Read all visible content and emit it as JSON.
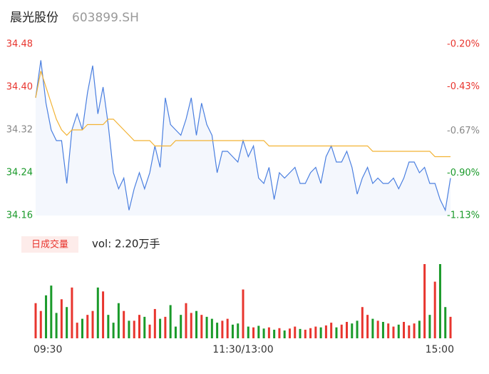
{
  "header": {
    "name": "晨光股份",
    "code": "603899.SH"
  },
  "chart_data": [
    {
      "type": "line",
      "x": [
        0,
        3,
        6,
        9,
        12,
        15,
        18,
        21,
        24,
        27,
        30,
        33,
        36,
        39,
        42,
        45,
        48,
        51,
        54,
        57,
        60,
        63,
        66,
        69,
        72,
        75,
        78,
        81,
        84,
        87,
        90,
        93,
        96,
        99,
        102,
        105,
        108,
        111,
        114,
        117,
        120,
        123,
        126,
        129,
        132,
        135,
        138,
        141,
        144,
        147,
        150,
        153,
        156,
        159,
        162,
        165,
        168,
        171,
        174,
        177,
        180,
        183,
        186,
        189,
        192,
        195,
        198,
        201,
        204,
        207,
        210,
        213,
        216,
        219,
        222,
        225,
        228,
        231,
        234,
        237,
        240
      ],
      "series": [
        {
          "color": "#4a7fe0",
          "fill": "#f4f7fd",
          "values": [
            34.38,
            34.45,
            34.37,
            34.32,
            34.3,
            34.3,
            34.22,
            34.32,
            34.35,
            34.32,
            34.39,
            34.44,
            34.35,
            34.4,
            34.33,
            34.24,
            34.21,
            34.23,
            34.17,
            34.21,
            34.24,
            34.21,
            34.24,
            34.29,
            34.25,
            34.38,
            34.33,
            34.32,
            34.31,
            34.34,
            34.38,
            34.31,
            34.37,
            34.33,
            34.31,
            34.24,
            34.28,
            34.28,
            34.27,
            34.26,
            34.3,
            34.27,
            34.29,
            34.23,
            34.22,
            34.25,
            34.19,
            34.24,
            34.23,
            34.24,
            34.25,
            34.22,
            34.22,
            34.24,
            34.25,
            34.22,
            34.27,
            34.29,
            34.26,
            34.26,
            34.28,
            34.25,
            34.2,
            34.23,
            34.25,
            34.22,
            34.23,
            34.22,
            34.22,
            34.23,
            34.21,
            34.23,
            34.26,
            34.26,
            34.24,
            34.25,
            34.22,
            34.22,
            34.19,
            34.17,
            34.23
          ]
        },
        {
          "color": "#f2b233",
          "values": [
            34.38,
            34.43,
            34.4,
            34.37,
            34.34,
            34.32,
            34.31,
            34.32,
            34.32,
            34.32,
            34.33,
            34.33,
            34.33,
            34.33,
            34.34,
            34.34,
            34.33,
            34.32,
            34.31,
            34.3,
            34.3,
            34.3,
            34.3,
            34.29,
            34.29,
            34.29,
            34.29,
            34.3,
            34.3,
            34.3,
            34.3,
            34.3,
            34.3,
            34.3,
            34.3,
            34.3,
            34.3,
            34.3,
            34.3,
            34.3,
            34.3,
            34.3,
            34.3,
            34.3,
            34.3,
            34.29,
            34.29,
            34.29,
            34.29,
            34.29,
            34.29,
            34.29,
            34.29,
            34.29,
            34.29,
            34.29,
            34.29,
            34.29,
            34.29,
            34.29,
            34.29,
            34.29,
            34.29,
            34.29,
            34.29,
            34.28,
            34.28,
            34.28,
            34.28,
            34.28,
            34.28,
            34.28,
            34.28,
            34.28,
            34.28,
            34.28,
            34.28,
            34.27,
            34.27,
            34.27,
            34.27
          ]
        }
      ],
      "xlim": [
        0,
        240
      ],
      "ylim": [
        34.16,
        34.48
      ],
      "yticks": [
        34.48,
        {
          "value": 34.4,
          "label": "34.40"
        },
        34.32,
        34.24,
        34.16
      ],
      "ytick_colors": [
        "#e8352e",
        "#e8352e",
        "#888888",
        "#1a9a2a",
        "#1a9a2a"
      ],
      "y2lim": [
        -1.13,
        -0.2
      ],
      "y2ticks": [
        {
          "value": -0.2,
          "label": "-0.20%"
        },
        {
          "value": -0.43,
          "label": "-0.43%"
        },
        {
          "value": -0.67,
          "label": "-0.67%"
        },
        {
          "value": -0.9,
          "label": "-0.90%"
        },
        {
          "value": -1.13,
          "label": "-1.13%"
        }
      ],
      "y2tick_colors": [
        "#e8352e",
        "#e8352e",
        "#888888",
        "#1a9a2a",
        "#1a9a2a"
      ]
    },
    {
      "type": "bar",
      "title": "日成交量",
      "subtitle": "vol: 2.20万手",
      "up_color": "#e8352e",
      "down_color": "#1a9a2a",
      "values": [
        900,
        700,
        1100,
        1350,
        650,
        1000,
        800,
        1300,
        400,
        500,
        600,
        700,
        1300,
        1200,
        600,
        400,
        900,
        700,
        450,
        450,
        600,
        550,
        350,
        750,
        500,
        550,
        850,
        300,
        600,
        900,
        650,
        700,
        600,
        550,
        500,
        400,
        450,
        500,
        350,
        380,
        1250,
        300,
        280,
        320,
        250,
        280,
        220,
        260,
        200,
        250,
        300,
        240,
        220,
        260,
        300,
        280,
        330,
        400,
        280,
        350,
        420,
        380,
        450,
        800,
        600,
        500,
        450,
        420,
        380,
        300,
        350,
        420,
        330,
        380,
        450,
        1900,
        600,
        1450,
        1900,
        800,
        550
      ],
      "xlim": [
        0,
        240
      ],
      "xticks": [
        {
          "value": 0,
          "label": "09:30"
        },
        {
          "value": 120,
          "label": "11:30/13:00"
        },
        {
          "value": 240,
          "label": "15:00"
        }
      ]
    }
  ]
}
